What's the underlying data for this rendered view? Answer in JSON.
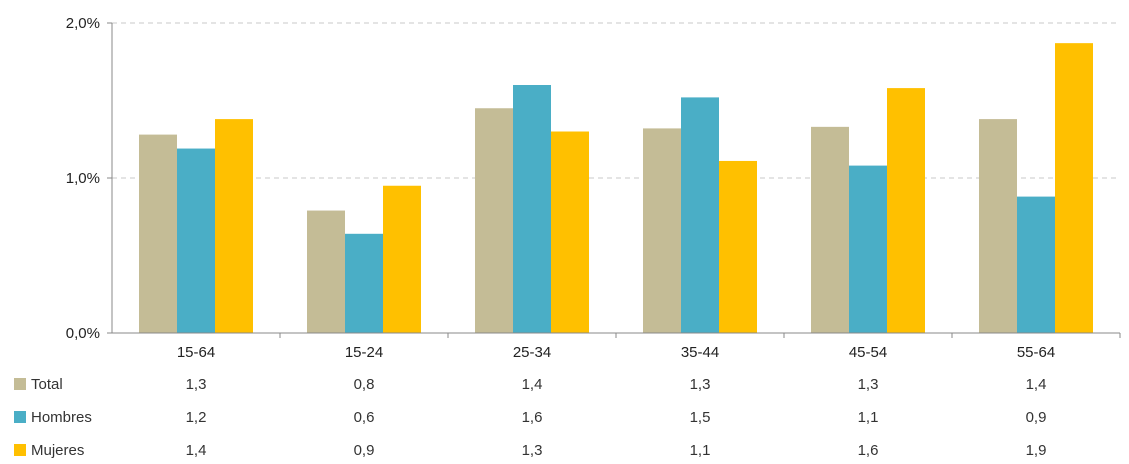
{
  "chart_data": {
    "type": "bar",
    "title": "",
    "xlabel": "",
    "ylabel": "",
    "ylim": [
      0,
      2.0
    ],
    "y_ticks": [
      0.0,
      1.0,
      2.0
    ],
    "y_tick_labels": [
      "0,0%",
      "1,0%",
      "2,0%"
    ],
    "grid": true,
    "legend": "data-table-below",
    "categories": [
      "15-64",
      "15-24",
      "25-34",
      "35-44",
      "45-54",
      "55-64"
    ],
    "series": [
      {
        "name": "Total",
        "color": "#c4bc96",
        "values": [
          1.28,
          0.79,
          1.45,
          1.32,
          1.33,
          1.38
        ],
        "labels": [
          "1,3",
          "0,8",
          "1,4",
          "1,3",
          "1,3",
          "1,4"
        ]
      },
      {
        "name": "Hombres",
        "color": "#4aaec6",
        "values": [
          1.19,
          0.64,
          1.6,
          1.52,
          1.08,
          0.88
        ],
        "labels": [
          "1,2",
          "0,6",
          "1,6",
          "1,5",
          "1,1",
          "0,9"
        ]
      },
      {
        "name": "Mujeres",
        "color": "#ffc000",
        "values": [
          1.38,
          0.95,
          1.3,
          1.11,
          1.58,
          1.87
        ],
        "labels": [
          "1,4",
          "0,9",
          "1,3",
          "1,1",
          "1,6",
          "1,9"
        ]
      }
    ]
  }
}
